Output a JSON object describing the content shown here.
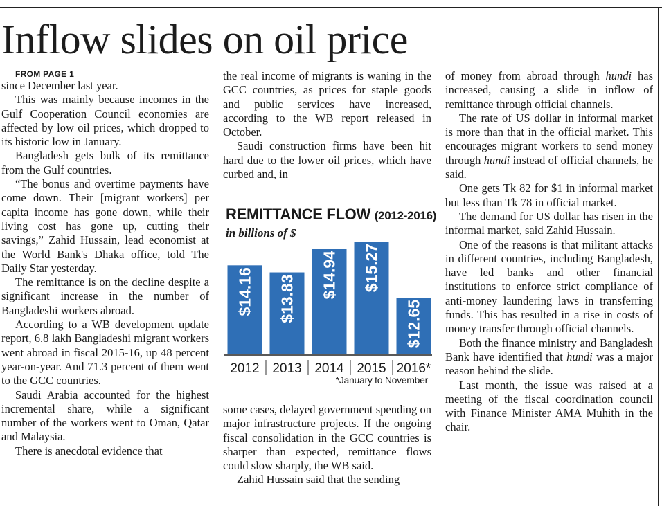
{
  "headline": "Inflow slides on oil price",
  "from_page": "FROM PAGE 1",
  "column1": [
    "since December last year.",
    "This was mainly because incomes in the Gulf Cooperation Council economies are affected by low oil prices, which dropped to its historic low in January.",
    "Bangladesh gets bulk of its remittance from the Gulf countries.",
    "“The bonus and overtime payments have come down. Their [migrant workers] per capita income has gone down, while their living cost has gone up, cutting their savings,” Zahid Hussain, lead economist at the World Bank's Dhaka office, told The Daily Star yesterday.",
    "The remittance is on the decline despite a significant increase in the number of Bangladeshi workers abroad.",
    "According to a WB development update report, 6.8 lakh Bangladeshi migrant workers went abroad in fiscal 2015-16, up 48 percent year-on-year. And 71.3 percent of them went to the GCC countries.",
    "Saudi Arabia accounted for the highest incremental share, while a significant number of the workers went to Oman, Qatar and Malaysia.",
    "There is anecdotal evidence that"
  ],
  "column2_top": [
    "the real income of migrants is waning in the GCC countries, as prices for staple goods and public services have increased, according to the WB report released in October.",
    "Saudi construction firms have been hit hard due to the lower oil prices, which have curbed and, in"
  ],
  "column2_bottom": [
    "some cases, delayed government spending on major infrastructure projects. If the ongoing fiscal consolidation in the GCC countries is sharper than expected, remittance flows could slow sharply, the WB said.",
    "Zahid Hussain said that the sending"
  ],
  "column3": {
    "p1_a": "of money from abroad through ",
    "p1_em": "hundi",
    "p1_b": " has increased, causing a slide in inflow of remittance through official channels.",
    "p2_a": "The rate of US dollar in informal market is more than that in the official market. This encourages migrant workers to send money through ",
    "p2_em": "hundi",
    "p2_b": " instead of official channels, he said.",
    "p3": "One gets Tk 82 for $1 in informal market but less than Tk 78 in official market.",
    "p4": "The demand for US dollar has risen in the informal market, said Zahid Hussain.",
    "p5": "One of the reasons is that militant attacks in different countries, including Bangladesh, have led banks and other financial institutions to enforce strict compliance of anti-money laundering laws in transferring funds. This has resulted in a rise in costs of money transfer through official channels.",
    "p6_a": "Both the finance ministry and Bangladesh Bank have identified that ",
    "p6_em": "hundi",
    "p6_b": " was a major reason behind the slide.",
    "p7": "Last month, the issue was raised at a meeting of the fiscal coordination council with Finance Minister AMA Muhith in the chair."
  },
  "chart_data": {
    "type": "bar",
    "title": "REMITTANCE FLOW",
    "title_years": "(2012-2016)",
    "subtitle": "in billions of $",
    "categories": [
      "2012",
      "2013",
      "2014",
      "2015",
      "2016*"
    ],
    "values": [
      14.16,
      13.83,
      14.94,
      15.27,
      12.65
    ],
    "value_labels": [
      "$14.16",
      "$13.83",
      "$14.94",
      "$15.27",
      "$12.65"
    ],
    "footnote": "*January to November",
    "bar_color": "#2f6fb6",
    "xlabel": "",
    "ylabel": ""
  }
}
